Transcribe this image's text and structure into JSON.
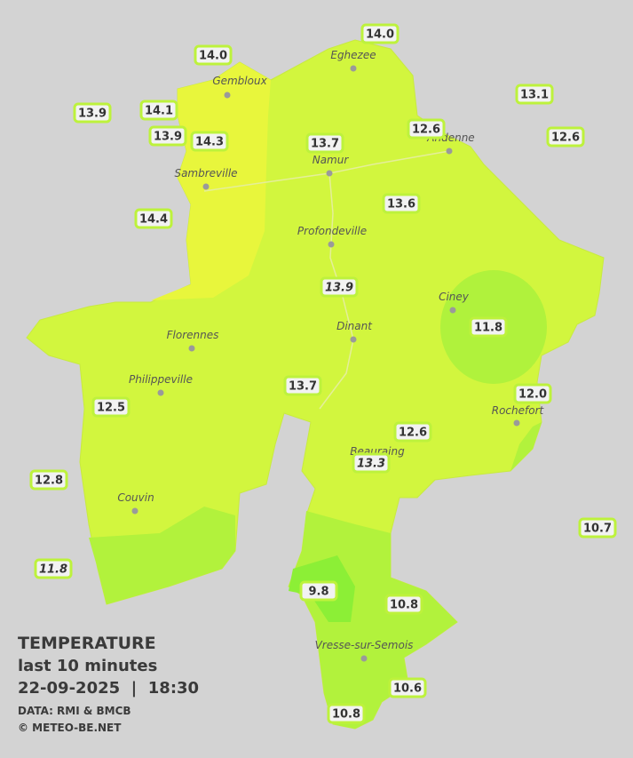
{
  "legend": {
    "title": "TEMPERATURE",
    "period": "last 10 minutes",
    "datetime": "22-09-2025  |  18:30",
    "source": "DATA: RMI & BMCB",
    "copyright": "© METEO-BE.NET"
  },
  "towns": [
    "Eghezee",
    "Gembloux",
    "Andenne",
    "Namur",
    "Sambreville",
    "Profondeville",
    "Ciney",
    "Dinant",
    "Florennes",
    "Philippeville",
    "Rochefort",
    "Beauraing",
    "Couvin",
    "Vresse-sur-Semois"
  ],
  "stations": [
    "14.0",
    "14.0",
    "13.9",
    "14.1",
    "13.9",
    "14.3",
    "13.1",
    "12.6",
    "12.6",
    "13.7",
    "14.4",
    "13.6",
    "13.9",
    "11.8",
    "13.7",
    "12.0",
    "12.5",
    "12.6",
    "13.3",
    "12.8",
    "10.7",
    "11.8",
    "9.8",
    "10.8",
    "10.6",
    "10.8"
  ]
}
